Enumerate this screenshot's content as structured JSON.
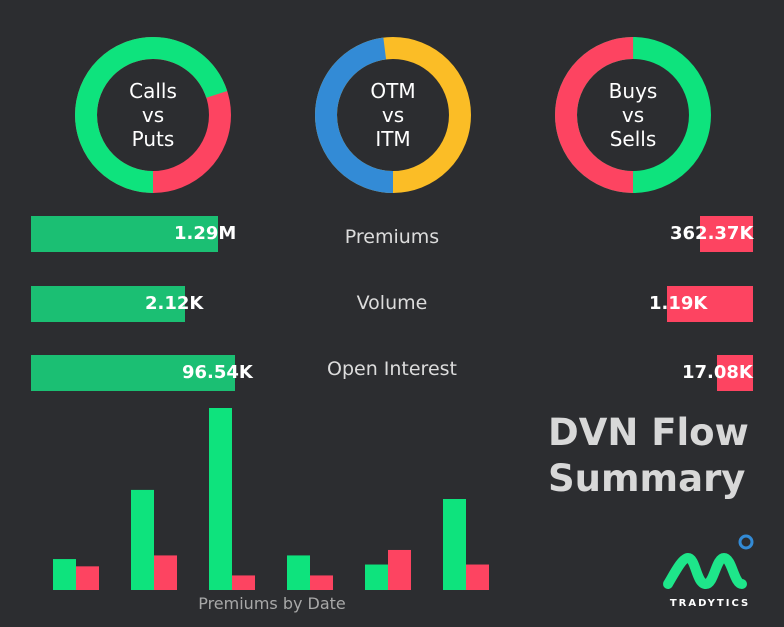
{
  "colors": {
    "background": "#2c2d30",
    "green": "#0ee37d",
    "green_bar": "#1bbf73",
    "red": "#fd4461",
    "yellow": "#fbbd26",
    "blue": "#338bd6"
  },
  "donuts": [
    {
      "lines": [
        "Calls",
        "vs",
        "Puts"
      ],
      "first_fraction": 0.7,
      "first_color": "#0ee37d",
      "second_color": "#fd4461"
    },
    {
      "lines": [
        "OTM",
        "vs",
        "ITM"
      ],
      "first_fraction": 0.48,
      "first_color": "#338bd6",
      "second_color": "#fbbd26"
    },
    {
      "lines": [
        "Buys",
        "vs",
        "Sells"
      ],
      "first_fraction": 0.5,
      "first_color": "#fd4461",
      "second_color": "#0ee37d"
    }
  ],
  "metrics": [
    {
      "label": "Premiums",
      "left_value": "1.29M",
      "right_value": "362.37K",
      "left_fraction": 0.78,
      "right_fraction": 0.22
    },
    {
      "label": "Volume",
      "left_value": "2.12K",
      "right_value": "1.19K",
      "left_fraction": 0.64,
      "right_fraction": 0.36
    },
    {
      "label": "Open Interest",
      "left_value": "96.54K",
      "right_value": "17.08K",
      "left_fraction": 0.85,
      "right_fraction": 0.15
    }
  ],
  "summary": {
    "line1": "DVN Flow",
    "line2": "Summary"
  },
  "chart_data": {
    "type": "bar",
    "title": "Premiums by Date",
    "categories": [
      "",
      "",
      "",
      "",
      "",
      ""
    ],
    "series": [
      {
        "values": [
          0.17,
          0.55,
          1.0,
          0.19,
          0.14,
          0.5
        ],
        "color": "#0ee37d"
      },
      {
        "values": [
          0.13,
          0.19,
          0.08,
          0.08,
          0.22,
          0.14
        ],
        "color": "#fd4461"
      }
    ],
    "ylim": [
      0,
      1
    ],
    "grid": false
  },
  "brand": {
    "name": "TRADYTICS"
  }
}
